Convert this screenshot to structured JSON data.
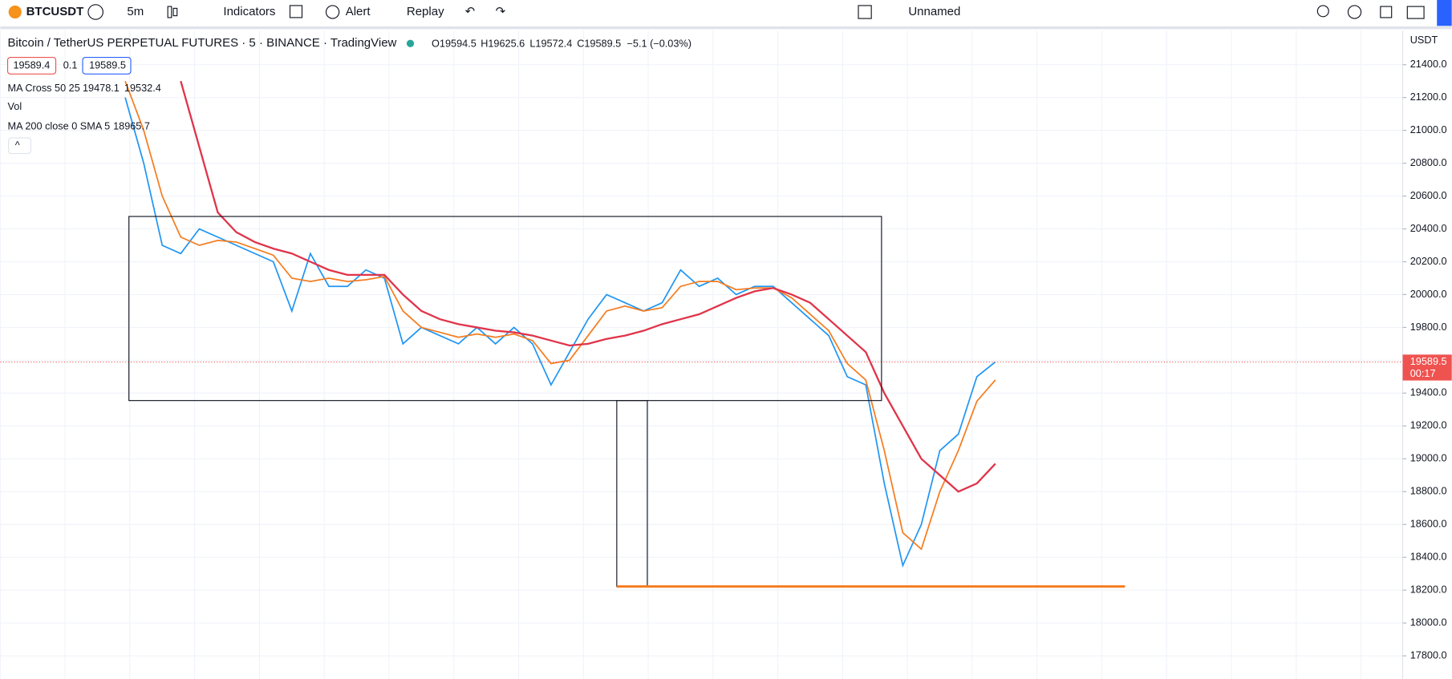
{
  "toolbar": {
    "symbol": "BTCUSDT",
    "interval": "5m",
    "indicators": "Indicators",
    "alert": "Alert",
    "replay": "Replay",
    "layout": "Unnamed"
  },
  "legend": {
    "title": "Bitcoin / TetherUS PERPETUAL FUTURES · 5 · BINANCE · TradingView",
    "open": "O19594.5",
    "high": "H19625.6",
    "low": "L19572.4",
    "close": "C19589.5",
    "change": "−5.1 (−0.03%)",
    "bid": "19589.4",
    "spread": "0.1",
    "ask": "19589.5",
    "ma_cross": "MA Cross 50 25",
    "ma_cross_v1": "19478.1",
    "ma_cross_v2": "19532.4",
    "vol": "Vol",
    "ma200": "MA 200 close 0 SMA 5",
    "ma200_v": "18965.7"
  },
  "axis_currency": "USDT",
  "countdown": "00:17",
  "chart_data": {
    "type": "line",
    "categories": [
      null,
      null,
      null,
      null,
      null,
      null,
      null,
      null,
      null,
      null,
      null,
      null,
      null,
      null,
      null,
      null,
      null,
      null,
      null,
      null,
      null,
      null,
      null,
      null,
      null,
      null,
      null,
      null,
      null,
      null,
      null,
      null,
      null,
      null,
      null,
      null,
      null,
      null,
      null,
      null,
      null,
      null,
      null,
      null,
      null,
      null,
      null,
      null
    ],
    "series": [
      {
        "color": "#2196f3",
        "values": [
          21200,
          20800,
          20300,
          20250,
          20400,
          20350,
          20300,
          20250,
          20200,
          19900,
          20250,
          20050,
          20050,
          20150,
          20100,
          19700,
          19800,
          19750,
          19700,
          19800,
          19700,
          19800,
          19700,
          19450,
          19650,
          19850,
          20000,
          19950,
          19900,
          19950,
          20150,
          20050,
          20100,
          20000,
          20050,
          20050,
          19950,
          19850,
          19750,
          19500,
          19450,
          18850,
          18350,
          18600,
          19050,
          19150,
          19500,
          19590
        ]
      },
      {
        "color": "#f57c1f",
        "values": [
          21300,
          21000,
          20600,
          20350,
          20300,
          20330,
          20320,
          20280,
          20240,
          20100,
          20080,
          20100,
          20080,
          20090,
          20110,
          19900,
          19800,
          19770,
          19740,
          19760,
          19740,
          19760,
          19720,
          19580,
          19600,
          19750,
          19900,
          19930,
          19900,
          19920,
          20050,
          20080,
          20080,
          20030,
          20040,
          20040,
          19980,
          19880,
          19780,
          19580,
          19480,
          19050,
          18550,
          18450,
          18800,
          19050,
          19350,
          19480
        ]
      },
      {
        "color": "#e0344a",
        "values": [
          null,
          null,
          null,
          21300,
          20900,
          20500,
          20380,
          20320,
          20280,
          20250,
          20200,
          20150,
          20120,
          20120,
          20120,
          20000,
          19900,
          19850,
          19820,
          19800,
          19780,
          19770,
          19750,
          19720,
          19690,
          19700,
          19730,
          19750,
          19780,
          19820,
          19850,
          19880,
          19930,
          19980,
          20020,
          20040,
          20000,
          19950,
          19850,
          19750,
          19650,
          19400,
          19200,
          19000,
          18900,
          18800,
          18850,
          18970
        ]
      }
    ],
    "last_price": 19589.5,
    "ylim": [
      17659,
      21608
    ],
    "yticks": [
      {
        "value": 17800,
        "label": "17800.0"
      },
      {
        "value": 18000,
        "label": "18000.0"
      },
      {
        "value": 18200,
        "label": "18200.0"
      },
      {
        "value": 18400,
        "label": "18400.0"
      },
      {
        "value": 18600,
        "label": "18600.0"
      },
      {
        "value": 18800,
        "label": "18800.0"
      },
      {
        "value": 19000,
        "label": "19000.0"
      },
      {
        "value": 19200,
        "label": "19200.0"
      },
      {
        "value": 19400,
        "label": "19400.0"
      },
      {
        "value": 19600,
        "label": "19600.0"
      },
      {
        "value": 19800,
        "label": "19800.0"
      },
      {
        "value": 20000,
        "label": "20000.0"
      },
      {
        "value": 20200,
        "label": "20200.0"
      },
      {
        "value": 20400,
        "label": "20400.0"
      },
      {
        "value": 20600,
        "label": "20600.0"
      },
      {
        "value": 20800,
        "label": "20800.0"
      },
      {
        "value": 21000,
        "label": "21000.0"
      },
      {
        "value": 21200,
        "label": "21200.0"
      },
      {
        "value": 21400,
        "label": "21400.0"
      }
    ],
    "grid": true
  }
}
